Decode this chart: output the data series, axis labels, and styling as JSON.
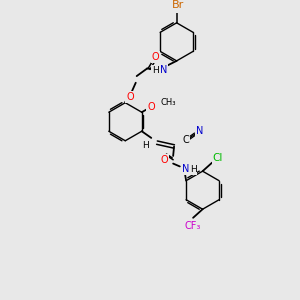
{
  "background_color": "#e8e8e8",
  "bond_color": "#000000",
  "atom_colors": {
    "O": "#ff0000",
    "N": "#0000cc",
    "Br": "#cc6600",
    "Cl": "#00bb00",
    "F": "#cc00cc",
    "C": "#000000",
    "H": "#000000"
  },
  "figsize": [
    3.0,
    3.0
  ],
  "dpi": 100
}
